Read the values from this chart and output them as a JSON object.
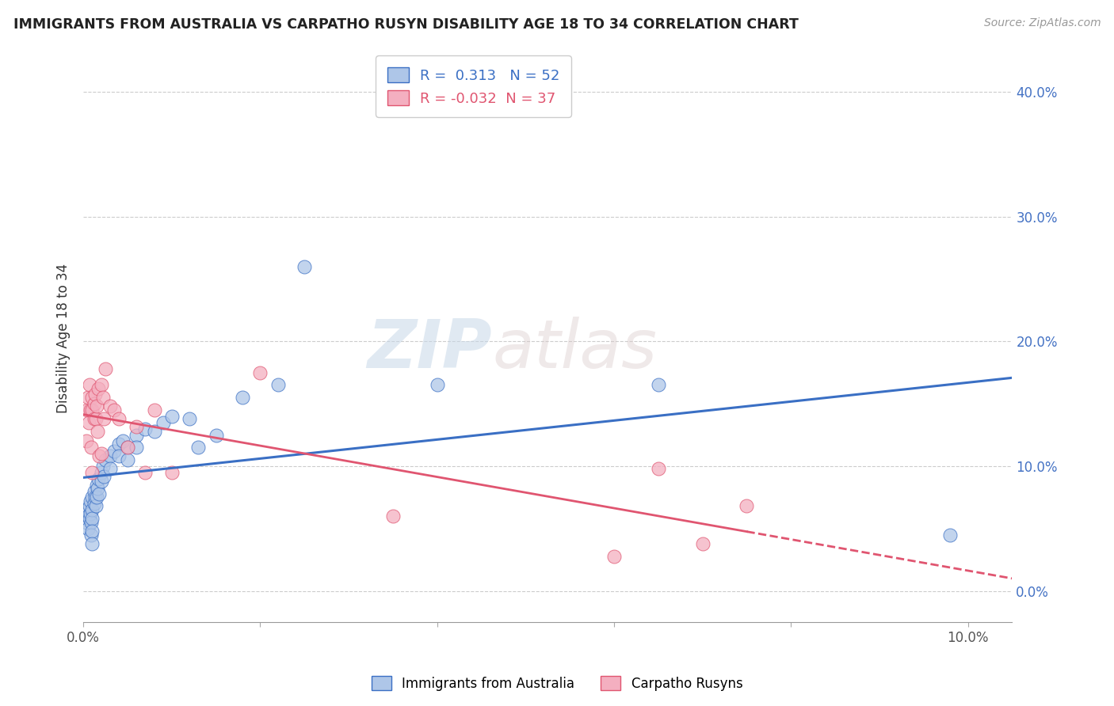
{
  "title": "IMMIGRANTS FROM AUSTRALIA VS CARPATHO RUSYN DISABILITY AGE 18 TO 34 CORRELATION CHART",
  "source": "Source: ZipAtlas.com",
  "ylabel": "Disability Age 18 to 34",
  "xlim": [
    0.0,
    0.105
  ],
  "ylim": [
    -0.025,
    0.43
  ],
  "yticks": [
    0.0,
    0.1,
    0.2,
    0.3,
    0.4
  ],
  "ytick_labels": [
    "0.0%",
    "10.0%",
    "20.0%",
    "30.0%",
    "40.0%"
  ],
  "xticks": [
    0.0,
    0.02,
    0.04,
    0.06,
    0.08,
    0.1
  ],
  "xtick_labels": [
    "0.0%",
    "",
    "",
    "",
    "",
    "10.0%"
  ],
  "blue_R": 0.313,
  "blue_N": 52,
  "pink_R": -0.032,
  "pink_N": 37,
  "blue_scatter_x": [
    0.0003,
    0.0003,
    0.0005,
    0.0005,
    0.0007,
    0.0007,
    0.0008,
    0.0008,
    0.0009,
    0.0009,
    0.001,
    0.001,
    0.001,
    0.001,
    0.001,
    0.0012,
    0.0012,
    0.0013,
    0.0014,
    0.0015,
    0.0015,
    0.0016,
    0.0017,
    0.0018,
    0.002,
    0.002,
    0.0022,
    0.0023,
    0.0025,
    0.003,
    0.003,
    0.0035,
    0.004,
    0.004,
    0.0045,
    0.005,
    0.005,
    0.006,
    0.006,
    0.007,
    0.008,
    0.009,
    0.01,
    0.012,
    0.013,
    0.015,
    0.018,
    0.022,
    0.025,
    0.04,
    0.065,
    0.098
  ],
  "blue_scatter_y": [
    0.065,
    0.055,
    0.06,
    0.05,
    0.068,
    0.058,
    0.072,
    0.062,
    0.055,
    0.045,
    0.075,
    0.065,
    0.058,
    0.048,
    0.038,
    0.08,
    0.07,
    0.075,
    0.068,
    0.085,
    0.075,
    0.082,
    0.09,
    0.078,
    0.095,
    0.088,
    0.1,
    0.092,
    0.105,
    0.108,
    0.098,
    0.112,
    0.118,
    0.108,
    0.12,
    0.115,
    0.105,
    0.125,
    0.115,
    0.13,
    0.128,
    0.135,
    0.14,
    0.138,
    0.115,
    0.125,
    0.155,
    0.165,
    0.26,
    0.165,
    0.165,
    0.045
  ],
  "pink_scatter_x": [
    0.0003,
    0.0004,
    0.0005,
    0.0006,
    0.0007,
    0.0008,
    0.0009,
    0.001,
    0.001,
    0.001,
    0.0012,
    0.0012,
    0.0013,
    0.0014,
    0.0015,
    0.0016,
    0.0017,
    0.0018,
    0.002,
    0.002,
    0.0022,
    0.0023,
    0.0025,
    0.003,
    0.0035,
    0.004,
    0.005,
    0.006,
    0.007,
    0.008,
    0.01,
    0.02,
    0.035,
    0.06,
    0.065,
    0.07,
    0.075
  ],
  "pink_scatter_y": [
    0.12,
    0.145,
    0.155,
    0.135,
    0.165,
    0.145,
    0.115,
    0.155,
    0.145,
    0.095,
    0.15,
    0.138,
    0.158,
    0.138,
    0.148,
    0.128,
    0.162,
    0.108,
    0.165,
    0.11,
    0.155,
    0.138,
    0.178,
    0.148,
    0.145,
    0.138,
    0.115,
    0.132,
    0.095,
    0.145,
    0.095,
    0.175,
    0.06,
    0.028,
    0.098,
    0.038,
    0.068
  ],
  "blue_color": "#aec6e8",
  "pink_color": "#f4afc0",
  "blue_line_color": "#3a6fc4",
  "pink_line_color": "#e05570",
  "watermark_zip": "ZIP",
  "watermark_atlas": "atlas",
  "legend_blue_label": "Immigrants from Australia",
  "legend_pink_label": "Carpatho Rusyns"
}
